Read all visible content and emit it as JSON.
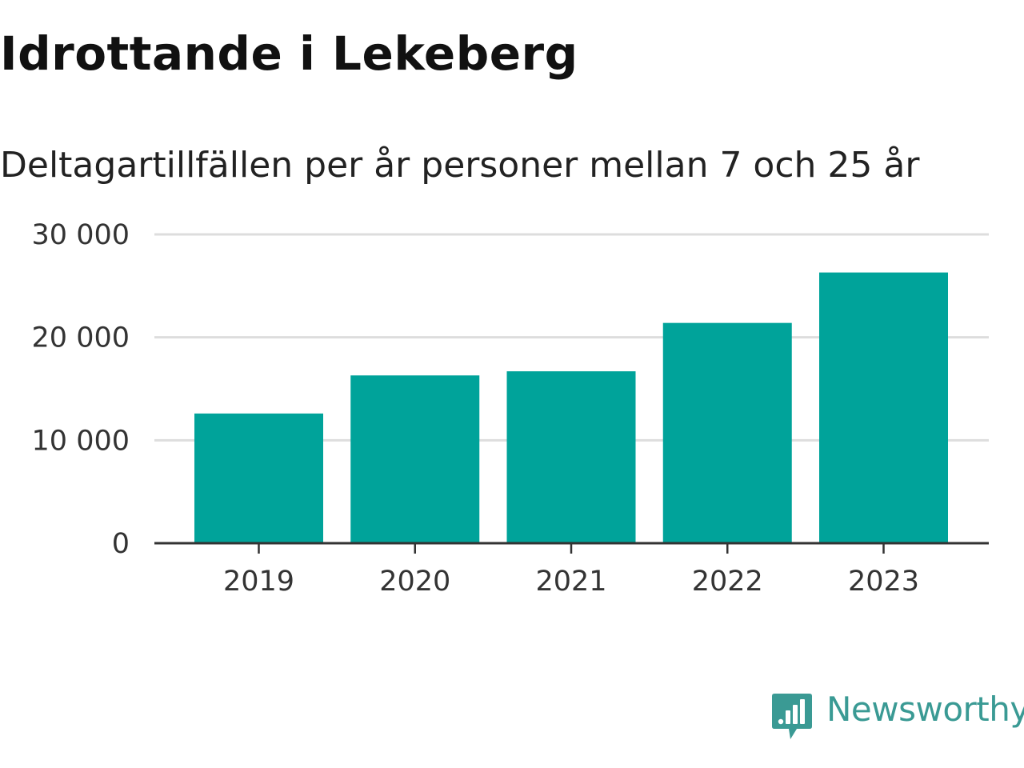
{
  "title": "Idrottande i Lekeberg",
  "subtitle": "Deltagartillfällen per år personer mellan 7 och 25 år",
  "brand": {
    "name": "Newsworthy",
    "icon": "newsworthy-logo-icon",
    "color": "#3a9a94"
  },
  "colors": {
    "bar": "#00a39a",
    "grid": "#dddddd",
    "axis": "#333333",
    "text": "#333333"
  },
  "chart_data": {
    "type": "bar",
    "categories": [
      "2019",
      "2020",
      "2021",
      "2022",
      "2023"
    ],
    "values": [
      12600,
      16300,
      16700,
      21400,
      26300
    ],
    "title": "Idrottande i Lekeberg",
    "subtitle": "Deltagartillfällen per år personer mellan 7 och 25 år",
    "xlabel": "",
    "ylabel": "",
    "ylim": [
      0,
      30000
    ],
    "yticks": [
      0,
      10000,
      20000,
      30000
    ],
    "ytick_labels": [
      "0",
      "10 000",
      "20 000",
      "30 000"
    ],
    "grid": true,
    "legend": "none"
  }
}
